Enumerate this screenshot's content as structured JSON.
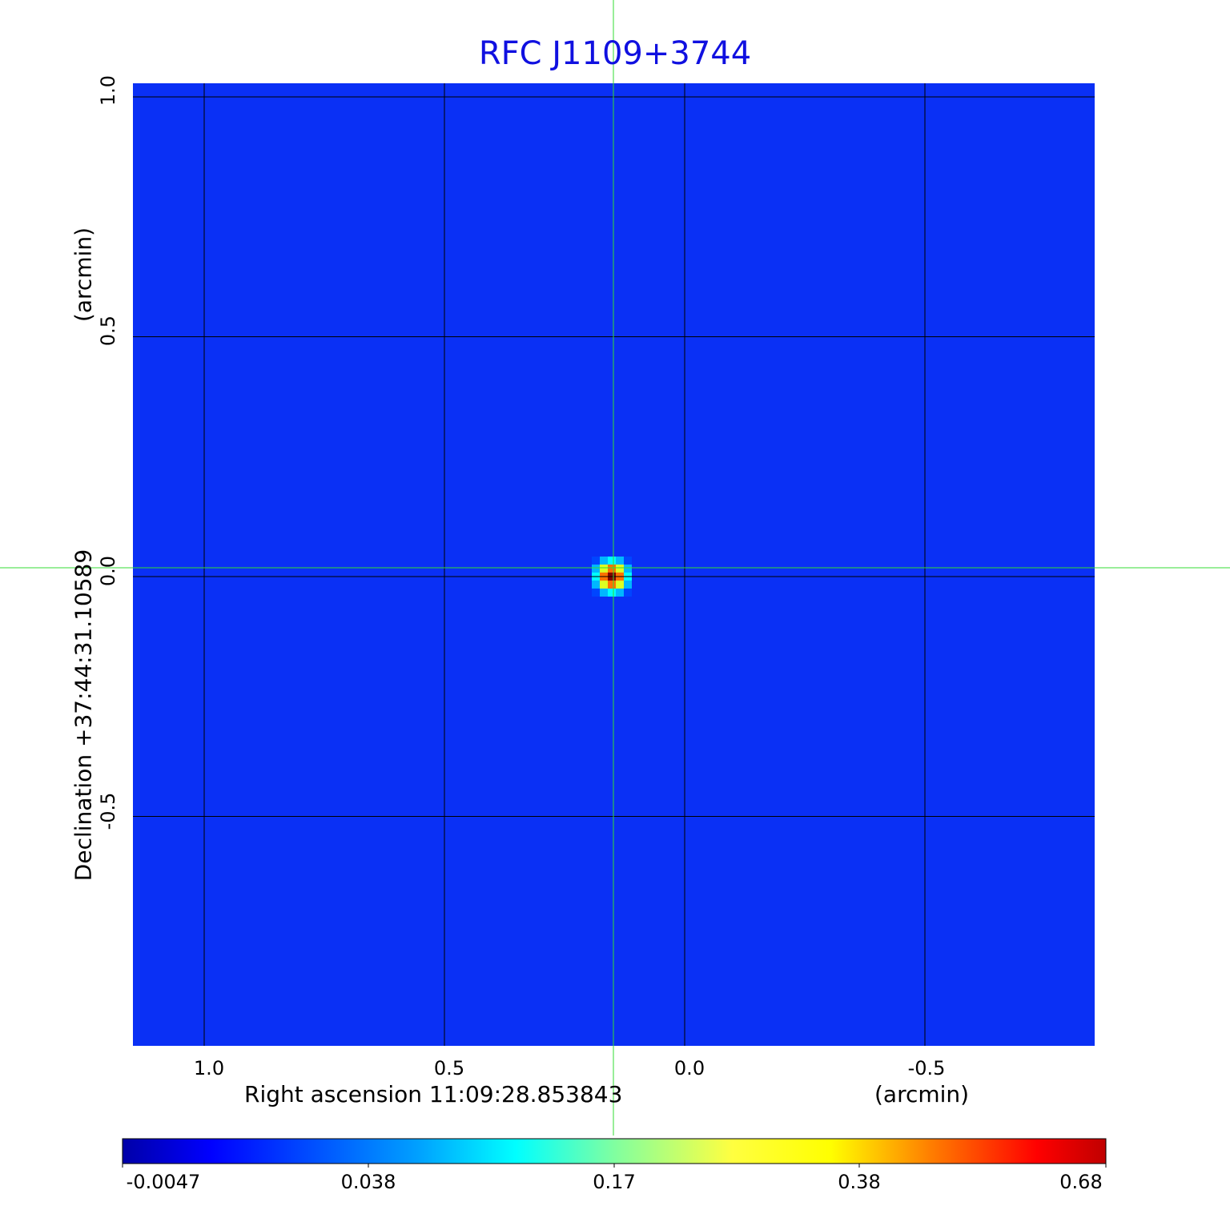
{
  "chart_data": {
    "type": "heatmap",
    "title": "RFC J1109+3744",
    "xlabel": "Right ascension  11:09:28.853843",
    "xunit": "(arcmin)",
    "ylabel": "Declination  +37:44:31.10589",
    "yunit": "(arcmin)",
    "x_ticks": [
      "1.0",
      "0.5",
      "0.0",
      "-0.5"
    ],
    "x_tick_values": [
      1.0,
      0.5,
      0.0,
      -0.5
    ],
    "y_ticks": [
      "1.0",
      "0.5",
      "0.0",
      "-0.5"
    ],
    "y_tick_values": [
      1.0,
      0.5,
      0.0,
      -0.5
    ],
    "xlim": [
      1.15,
      -0.855
    ],
    "ylim": [
      -0.98,
      1.03
    ],
    "grid": true,
    "crosshair": {
      "x": 0.145,
      "y": 0.02,
      "color": "#33dd33"
    },
    "colormap": "jet",
    "colorbar": {
      "ticks": [
        "-0.0047",
        "0.038",
        "0.17",
        "0.38",
        "0.68"
      ],
      "range": [
        -0.0047,
        0.68
      ],
      "placement": "bottom"
    },
    "background_value": -0.0047,
    "source": {
      "x": 0.145,
      "y": 0.0,
      "peak": 0.68
    },
    "colors": {
      "title": "#1010e0",
      "background": "#0a30f5",
      "grid": "#000000"
    }
  }
}
